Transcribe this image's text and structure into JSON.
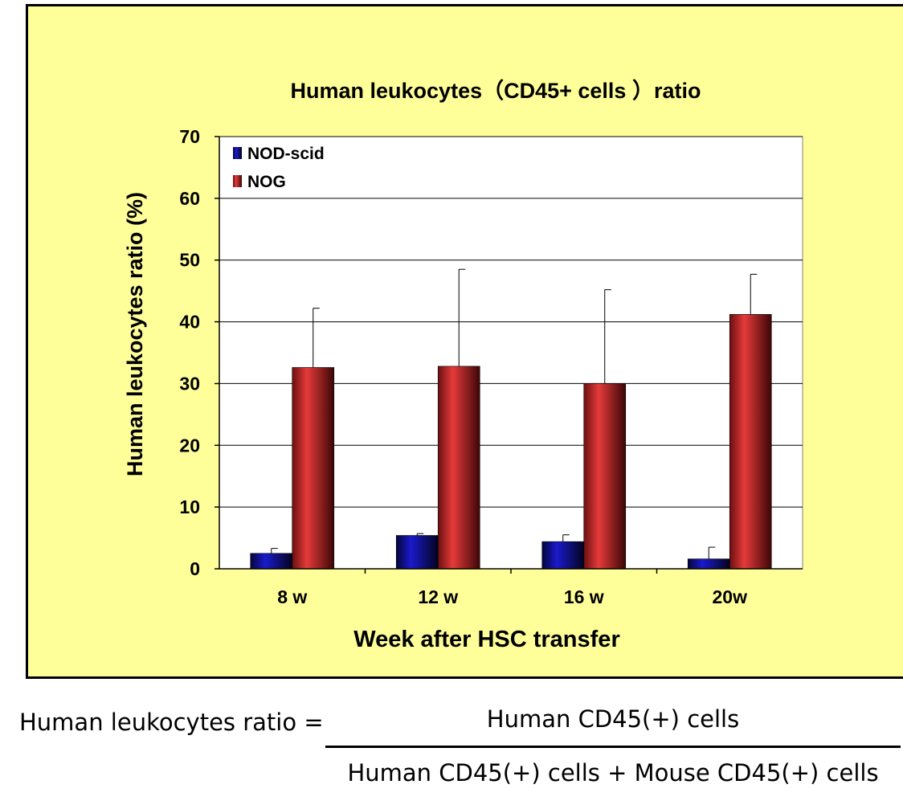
{
  "chart_data": {
    "type": "bar",
    "title": "Human leukocytes（CD45+ cells ）ratio",
    "xlabel": "Week after HSC transfer",
    "ylabel": "Human leukocytes ratio (%)",
    "ylim": [
      0,
      70
    ],
    "yticks": [
      "0",
      "10",
      "20",
      "30",
      "40",
      "50",
      "60",
      "70"
    ],
    "grid": true,
    "legend_position": "top-left",
    "categories": [
      "8 w",
      "12 w",
      "16 w",
      "20w"
    ],
    "series": [
      {
        "name": "NOD-scid",
        "color": "#0a0a8a",
        "values": [
          2.5,
          5.4,
          4.4,
          1.6
        ],
        "error": [
          0.8,
          0.3,
          1.1,
          1.9
        ]
      },
      {
        "name": "NOG",
        "color": "#d42a2a",
        "values": [
          32.6,
          32.8,
          30.0,
          41.2
        ],
        "error": [
          9.6,
          15.7,
          15.2,
          6.5
        ]
      }
    ]
  },
  "formula": {
    "label": "Human leukocytes ratio =",
    "numerator": "Human CD45(+) cells",
    "denominator": "Human CD45(+) cells + Mouse CD45(+) cells"
  }
}
